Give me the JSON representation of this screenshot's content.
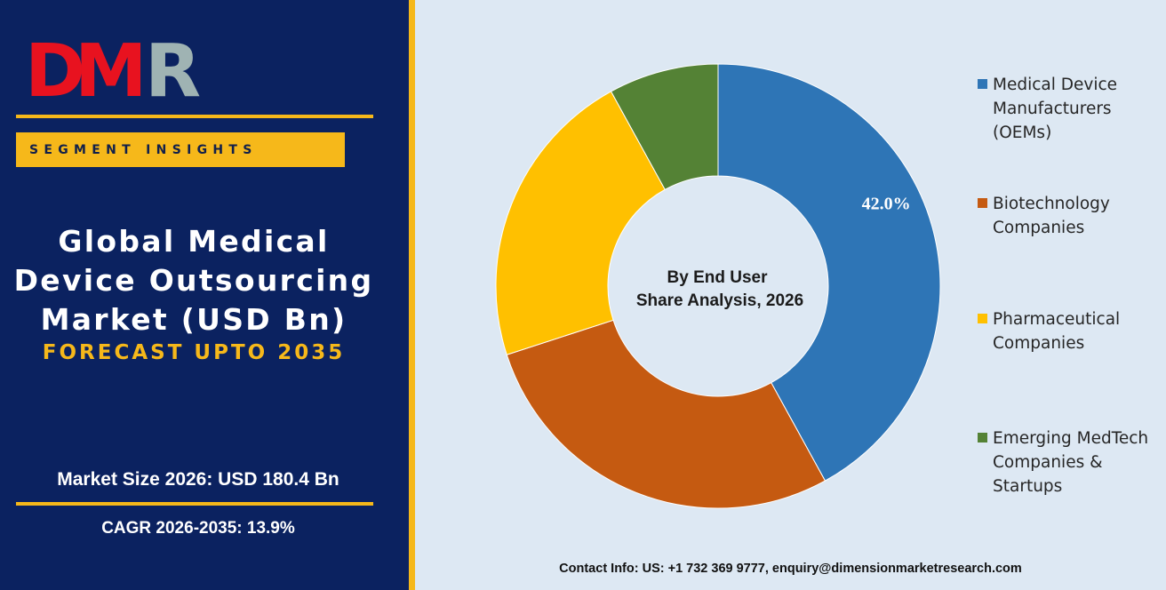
{
  "logo": {
    "text_d": "D",
    "text_m": "M",
    "text_r": "R"
  },
  "header": {
    "segment_label": "SEGMENT INSIGHTS"
  },
  "title": {
    "line1": "Global Medical",
    "line2": "Device Outsourcing",
    "line3": "Market (USD Bn)",
    "forecast": "FORECAST UPTO 2035"
  },
  "stats": {
    "market_size": "Market Size 2026: USD 180.4 Bn",
    "cagr": "CAGR 2026-2035: 13.9%"
  },
  "chart_data": {
    "type": "pie",
    "variant": "donut",
    "center_label": [
      "By End User",
      "Share Analysis, 2026"
    ],
    "categories": [
      "Medical Device Manufacturers (OEMs)",
      "Biotechnology Companies",
      "Pharmaceutical Companies",
      "Emerging MedTech Companies & Startups"
    ],
    "values": [
      42.0,
      28.0,
      22.0,
      8.0
    ],
    "data_labels": [
      "42.0%",
      "",
      "",
      ""
    ],
    "colors": [
      "#2e75b6",
      "#c55a11",
      "#ffc000",
      "#548235"
    ],
    "legend_position": "right"
  },
  "legend": {
    "items": [
      {
        "lines": [
          "Medical Device",
          "Manufacturers",
          "(OEMs)"
        ]
      },
      {
        "lines": [
          "Biotechnology",
          "Companies"
        ]
      },
      {
        "lines": [
          "Pharmaceutical",
          "Companies"
        ]
      },
      {
        "lines": [
          "Emerging MedTech",
          "Companies &",
          "Startups"
        ]
      }
    ]
  },
  "footer": {
    "contact": "Contact Info: US: +1 732 369 9777, enquiry@dimensionmarketresearch.com"
  }
}
